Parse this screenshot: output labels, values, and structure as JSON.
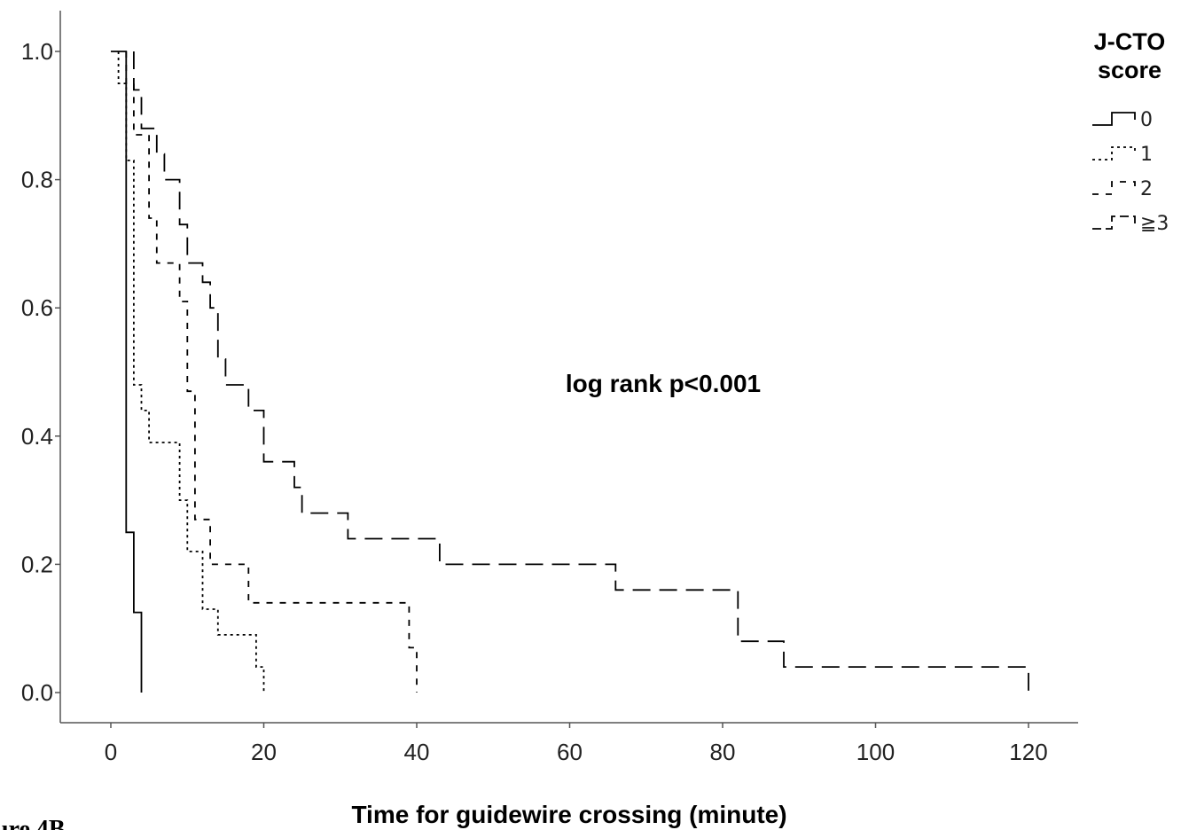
{
  "figure_label": "ure 4B",
  "chart_data": {
    "type": "line",
    "subtype": "kaplan-meier step",
    "xlabel": "Time for guidewire crossing (minute)",
    "ylabel": "",
    "xlim": [
      0,
      120
    ],
    "ylim": [
      0,
      1
    ],
    "xticks": [
      "0",
      "20",
      "40",
      "60",
      "80",
      "100",
      "120"
    ],
    "yticks": [
      "0.0",
      "0.2",
      "0.4",
      "0.6",
      "0.8",
      "1.0"
    ],
    "grid": false,
    "annotation": "log rank p<0.001",
    "legend": {
      "title_lines": [
        "J-CTO",
        "score"
      ],
      "position": "top-right outside",
      "entries": [
        "0",
        "1",
        "2",
        "≧3"
      ]
    },
    "series": [
      {
        "name": "0",
        "style": "solid",
        "color": "#000000",
        "steps": [
          [
            0,
            1.0
          ],
          [
            2,
            1.0
          ],
          [
            2,
            0.25
          ],
          [
            3,
            0.25
          ],
          [
            3,
            0.125
          ],
          [
            4,
            0.125
          ],
          [
            4,
            0.0
          ]
        ]
      },
      {
        "name": "1",
        "style": "dotted",
        "color": "#000000",
        "steps": [
          [
            1,
            1.0
          ],
          [
            1,
            0.95
          ],
          [
            2,
            0.95
          ],
          [
            2,
            0.83
          ],
          [
            3,
            0.83
          ],
          [
            3,
            0.48
          ],
          [
            4,
            0.48
          ],
          [
            4,
            0.44
          ],
          [
            5,
            0.44
          ],
          [
            5,
            0.39
          ],
          [
            9,
            0.39
          ],
          [
            9,
            0.3
          ],
          [
            10,
            0.3
          ],
          [
            10,
            0.22
          ],
          [
            12,
            0.22
          ],
          [
            12,
            0.13
          ],
          [
            14,
            0.13
          ],
          [
            14,
            0.09
          ],
          [
            19,
            0.09
          ],
          [
            19,
            0.04
          ],
          [
            20,
            0.04
          ],
          [
            20,
            0.0
          ]
        ]
      },
      {
        "name": "2",
        "style": "short-dash",
        "color": "#000000",
        "steps": [
          [
            2,
            1.0
          ],
          [
            2,
            0.95
          ],
          [
            3,
            0.95
          ],
          [
            3,
            0.87
          ],
          [
            5,
            0.87
          ],
          [
            5,
            0.74
          ],
          [
            6,
            0.74
          ],
          [
            6,
            0.67
          ],
          [
            9,
            0.67
          ],
          [
            9,
            0.61
          ],
          [
            10,
            0.61
          ],
          [
            10,
            0.47
          ],
          [
            11,
            0.47
          ],
          [
            11,
            0.27
          ],
          [
            13,
            0.27
          ],
          [
            13,
            0.2
          ],
          [
            18,
            0.2
          ],
          [
            18,
            0.14
          ],
          [
            39,
            0.14
          ],
          [
            39,
            0.07
          ],
          [
            40,
            0.07
          ],
          [
            40,
            0.0
          ]
        ]
      },
      {
        "name": "≧3",
        "style": "long-dash",
        "color": "#000000",
        "steps": [
          [
            3,
            1.0
          ],
          [
            3,
            0.94
          ],
          [
            4,
            0.94
          ],
          [
            4,
            0.88
          ],
          [
            6,
            0.88
          ],
          [
            6,
            0.84
          ],
          [
            7,
            0.84
          ],
          [
            7,
            0.8
          ],
          [
            9,
            0.8
          ],
          [
            9,
            0.73
          ],
          [
            10,
            0.73
          ],
          [
            10,
            0.67
          ],
          [
            12,
            0.67
          ],
          [
            12,
            0.64
          ],
          [
            13,
            0.64
          ],
          [
            13,
            0.6
          ],
          [
            14,
            0.6
          ],
          [
            14,
            0.52
          ],
          [
            15,
            0.52
          ],
          [
            15,
            0.48
          ],
          [
            18,
            0.48
          ],
          [
            18,
            0.44
          ],
          [
            20,
            0.44
          ],
          [
            20,
            0.36
          ],
          [
            24,
            0.36
          ],
          [
            24,
            0.32
          ],
          [
            25,
            0.32
          ],
          [
            25,
            0.28
          ],
          [
            31,
            0.28
          ],
          [
            31,
            0.24
          ],
          [
            43,
            0.24
          ],
          [
            43,
            0.2
          ],
          [
            66,
            0.2
          ],
          [
            66,
            0.16
          ],
          [
            82,
            0.16
          ],
          [
            82,
            0.08
          ],
          [
            88,
            0.08
          ],
          [
            88,
            0.04
          ],
          [
            120,
            0.04
          ],
          [
            120,
            0.0
          ]
        ]
      }
    ]
  }
}
